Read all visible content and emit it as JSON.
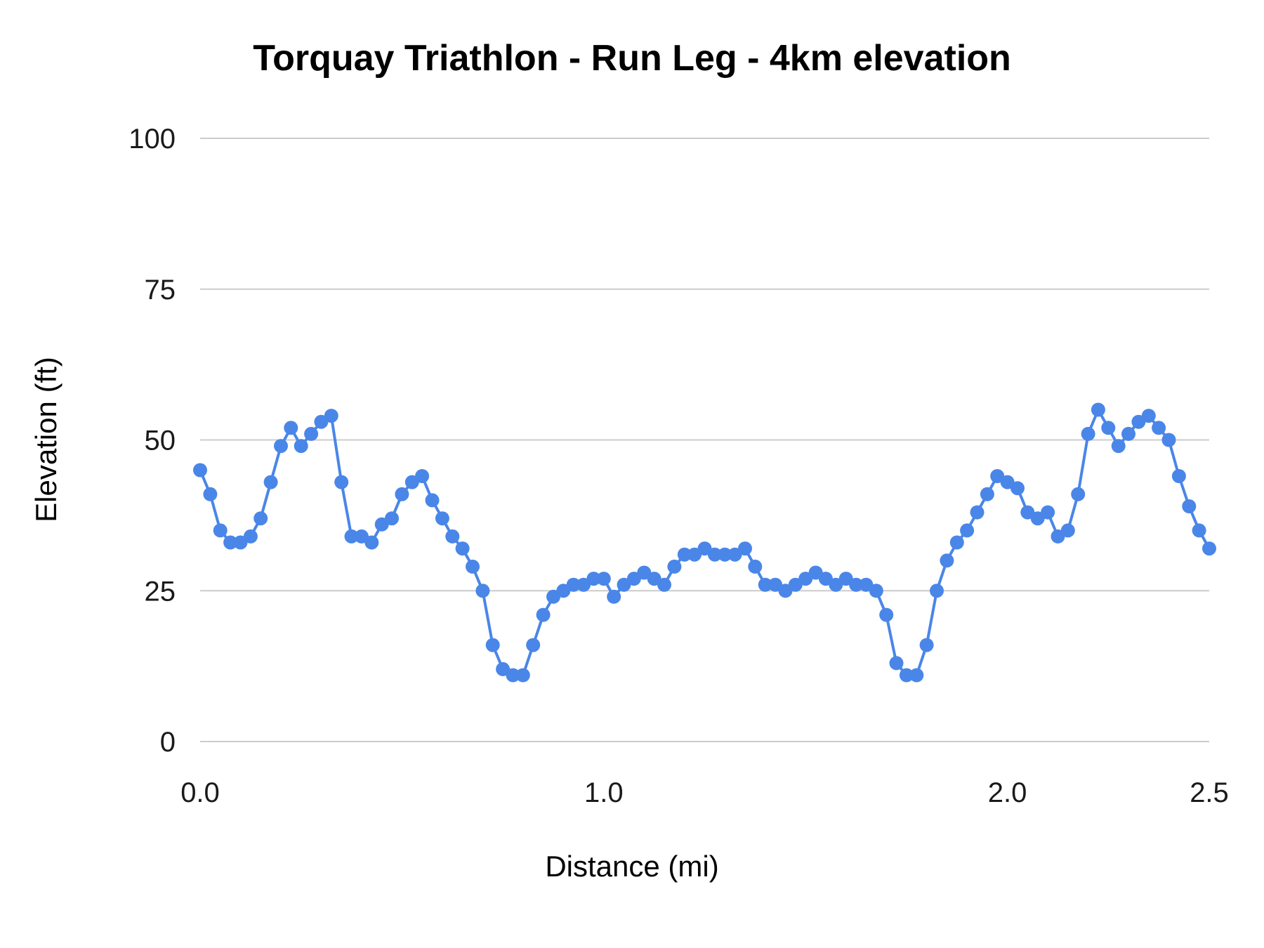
{
  "page": {
    "background": "#ffffff"
  },
  "chart_data": {
    "type": "line",
    "title": "Torquay Triathlon  - Run Leg - 4km elevation",
    "xlabel": "Distance (mi)",
    "ylabel": "Elevation (ft)",
    "xlim": [
      0,
      2.5
    ],
    "ylim": [
      0,
      100
    ],
    "grid": "horizontal-only",
    "legend": "none",
    "gridline_color": "#cccccc",
    "text_color": "#1a1a1a",
    "yticks": [
      {
        "value": 0,
        "label": "0"
      },
      {
        "value": 25,
        "label": "25"
      },
      {
        "value": 50,
        "label": "50"
      },
      {
        "value": 75,
        "label": "75"
      },
      {
        "value": 100,
        "label": "100"
      }
    ],
    "xticks": [
      {
        "value": 0,
        "label": "0.0"
      },
      {
        "value": 1,
        "label": "1.0"
      },
      {
        "value": 2,
        "label": "2.0"
      },
      {
        "value": 2.5,
        "label": "2.5"
      }
    ],
    "series": [
      {
        "color": "#4a86e8",
        "marker": "circle",
        "marker_radius": 10,
        "line_width": 4,
        "points": [
          [
            0,
            45
          ],
          [
            0.025,
            41
          ],
          [
            0.05,
            35
          ],
          [
            0.075,
            33
          ],
          [
            0.1,
            33
          ],
          [
            0.125,
            34
          ],
          [
            0.15,
            37
          ],
          [
            0.175,
            43
          ],
          [
            0.2,
            49
          ],
          [
            0.225,
            52
          ],
          [
            0.25,
            49
          ],
          [
            0.275,
            51
          ],
          [
            0.3,
            53
          ],
          [
            0.325,
            54
          ],
          [
            0.35,
            43
          ],
          [
            0.375,
            34
          ],
          [
            0.4,
            34
          ],
          [
            0.425,
            33
          ],
          [
            0.45,
            36
          ],
          [
            0.475,
            37
          ],
          [
            0.5,
            41
          ],
          [
            0.525,
            43
          ],
          [
            0.55,
            44
          ],
          [
            0.575,
            40
          ],
          [
            0.6,
            37
          ],
          [
            0.625,
            34
          ],
          [
            0.65,
            32
          ],
          [
            0.675,
            29
          ],
          [
            0.7,
            25
          ],
          [
            0.725,
            16
          ],
          [
            0.75,
            12
          ],
          [
            0.775,
            11
          ],
          [
            0.8,
            11
          ],
          [
            0.825,
            16
          ],
          [
            0.85,
            21
          ],
          [
            0.875,
            24
          ],
          [
            0.9,
            25
          ],
          [
            0.925,
            26
          ],
          [
            0.95,
            26
          ],
          [
            0.975,
            27
          ],
          [
            1,
            27
          ],
          [
            1.025,
            24
          ],
          [
            1.05,
            26
          ],
          [
            1.075,
            27
          ],
          [
            1.1,
            28
          ],
          [
            1.125,
            27
          ],
          [
            1.15,
            26
          ],
          [
            1.175,
            29
          ],
          [
            1.2,
            31
          ],
          [
            1.225,
            31
          ],
          [
            1.25,
            32
          ],
          [
            1.275,
            31
          ],
          [
            1.3,
            31
          ],
          [
            1.325,
            31
          ],
          [
            1.35,
            32
          ],
          [
            1.375,
            29
          ],
          [
            1.4,
            26
          ],
          [
            1.425,
            26
          ],
          [
            1.45,
            25
          ],
          [
            1.475,
            26
          ],
          [
            1.5,
            27
          ],
          [
            1.525,
            28
          ],
          [
            1.55,
            27
          ],
          [
            1.575,
            26
          ],
          [
            1.6,
            27
          ],
          [
            1.625,
            26
          ],
          [
            1.65,
            26
          ],
          [
            1.675,
            25
          ],
          [
            1.7,
            21
          ],
          [
            1.725,
            13
          ],
          [
            1.75,
            11
          ],
          [
            1.775,
            11
          ],
          [
            1.8,
            16
          ],
          [
            1.825,
            25
          ],
          [
            1.85,
            30
          ],
          [
            1.875,
            33
          ],
          [
            1.9,
            35
          ],
          [
            1.925,
            38
          ],
          [
            1.95,
            41
          ],
          [
            1.975,
            44
          ],
          [
            2,
            43
          ],
          [
            2.025,
            42
          ],
          [
            2.05,
            38
          ],
          [
            2.075,
            37
          ],
          [
            2.1,
            38
          ],
          [
            2.125,
            34
          ],
          [
            2.15,
            35
          ],
          [
            2.175,
            41
          ],
          [
            2.2,
            51
          ],
          [
            2.225,
            55
          ],
          [
            2.25,
            52
          ],
          [
            2.275,
            49
          ],
          [
            2.3,
            51
          ],
          [
            2.325,
            53
          ],
          [
            2.35,
            54
          ],
          [
            2.375,
            52
          ],
          [
            2.4,
            50
          ],
          [
            2.425,
            44
          ],
          [
            2.45,
            39
          ],
          [
            2.475,
            35
          ],
          [
            2.5,
            32
          ]
        ]
      }
    ]
  }
}
